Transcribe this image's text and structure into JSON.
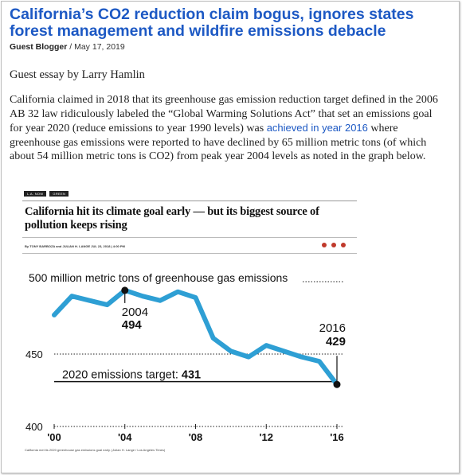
{
  "article": {
    "headline": "California’s CO2 reduction claim bogus, ignores states forest management and wildfire emissions debacle",
    "author": "Guest Blogger",
    "date": "/ May 17, 2019",
    "lead": "Guest essay by Larry Hamlin",
    "para_1": "California claimed in 2018 that its greenhouse gas emission reduction target defined in the 2006 AB 32 law ridiculously labeled the “Global Warming Solutions Act” that set an emissions goal for year 2020 (reduce emissions to year 1990 levels) was",
    "link_text": "achieved in year 2016",
    "para_2": "where greenhouse gas emissions were reported to have declined by 65 million metric tons (of which about 54 million metric tons is CO2) from peak year 2004 levels as noted in the graph below."
  },
  "figure": {
    "tags": [
      "L.A. NOW",
      "GREEN"
    ],
    "title": "California hit its climate goal early — but its biggest source of pollution keeps rising",
    "byline": "By TONY BARBOZA and JULIAN H. LANGE   JUL 23, 2018  |  4:00 PM",
    "caption": "California met its 2020 greenhouse gas emissions goal early. (Julian H. Lange / Los Angeles Times)"
  },
  "chart_data": {
    "type": "line",
    "title": "500 million metric tons of greenhouse gas emissions",
    "xlabel": "",
    "ylabel": "",
    "x": [
      2000,
      2001,
      2002,
      2003,
      2004,
      2005,
      2006,
      2007,
      2008,
      2009,
      2010,
      2011,
      2012,
      2013,
      2014,
      2015,
      2016
    ],
    "values": [
      477,
      490,
      487,
      484,
      494,
      490,
      487,
      493,
      489,
      461,
      452,
      448,
      456,
      452,
      448,
      445,
      429
    ],
    "xlim": [
      2000,
      2016
    ],
    "ylim": [
      400,
      500
    ],
    "x_ticks": [
      {
        "value": 2000,
        "label": "'00"
      },
      {
        "value": 2004,
        "label": "'04"
      },
      {
        "value": 2008,
        "label": "'08"
      },
      {
        "value": 2012,
        "label": "'12"
      },
      {
        "value": 2016,
        "label": "'16"
      }
    ],
    "y_ticks": [
      {
        "value": 500,
        "label": "500"
      },
      {
        "value": 450,
        "label": "450"
      },
      {
        "value": 400,
        "label": "400"
      }
    ],
    "annotations": [
      {
        "x": 2004,
        "y": 494,
        "label_year": "2004",
        "label_value": "494"
      },
      {
        "x": 2016,
        "y": 429,
        "label_year": "2016",
        "label_value": "429"
      }
    ],
    "target": {
      "value": 431,
      "label": "2020 emissions target:",
      "value_label": "431"
    },
    "line_color": "#2e9fd4",
    "grid": "dotted"
  }
}
